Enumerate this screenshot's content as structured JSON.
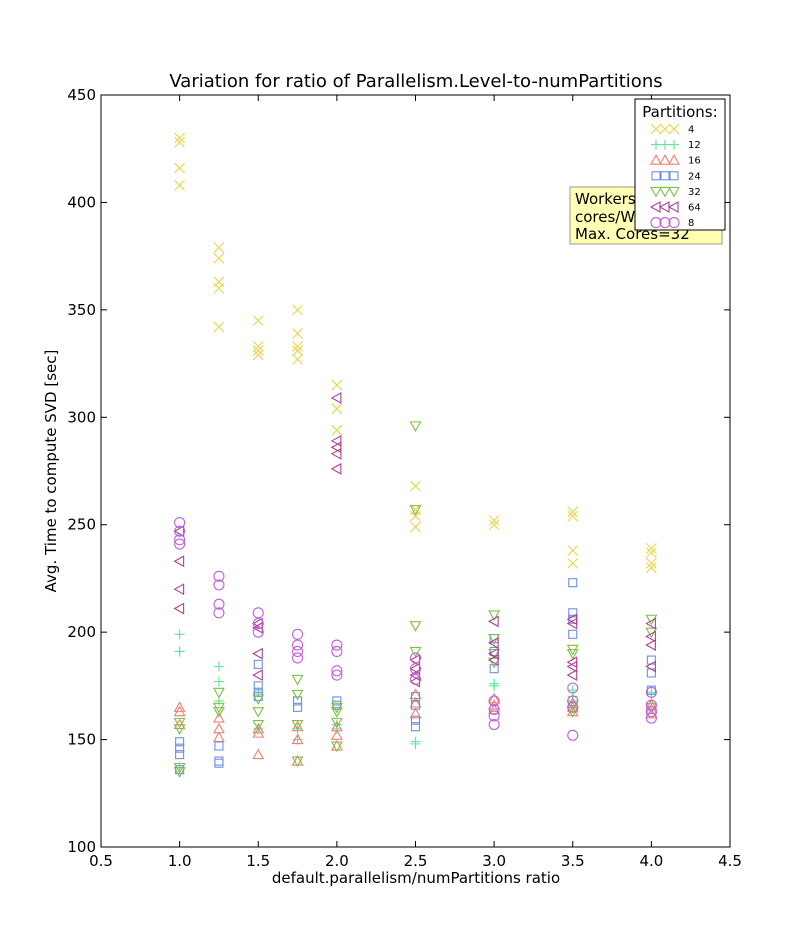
{
  "chart_data": {
    "type": "scatter",
    "title": "Variation for ratio of Parallelism.Level-to-numPartitions",
    "xlabel": "default.parallelism/numPartitions ratio",
    "ylabel": "Avg. Time to compute SVD [sec]",
    "xlim": [
      0.5,
      4.5
    ],
    "ylim": [
      100,
      450
    ],
    "xticks": [
      "0.5",
      "1.0",
      "1.5",
      "2.0",
      "2.5",
      "3.0",
      "3.5",
      "4.0",
      "4.5"
    ],
    "yticks": [
      "100",
      "150",
      "200",
      "250",
      "300",
      "350",
      "400",
      "450"
    ],
    "grid": false,
    "legend": {
      "title": "Partitions:",
      "placement": "top-right"
    },
    "annotation": {
      "lines": [
        "Workers",
        "cores/W",
        "Max. Cores=32"
      ],
      "background": "#ffffb3"
    },
    "series": [
      {
        "name": "4",
        "marker": "x",
        "color": "#e8d44d",
        "points": [
          [
            1.0,
            430
          ],
          [
            1.0,
            428
          ],
          [
            1.0,
            416
          ],
          [
            1.0,
            408
          ],
          [
            1.25,
            379
          ],
          [
            1.25,
            374
          ],
          [
            1.25,
            363
          ],
          [
            1.25,
            360
          ],
          [
            1.25,
            342
          ],
          [
            1.5,
            345
          ],
          [
            1.5,
            333
          ],
          [
            1.5,
            331
          ],
          [
            1.5,
            329
          ],
          [
            1.75,
            350
          ],
          [
            1.75,
            339
          ],
          [
            1.75,
            333
          ],
          [
            1.75,
            331
          ],
          [
            1.75,
            327
          ],
          [
            2.0,
            315
          ],
          [
            2.0,
            304
          ],
          [
            2.0,
            294
          ],
          [
            2.5,
            268
          ],
          [
            2.5,
            257
          ],
          [
            2.5,
            254
          ],
          [
            2.5,
            249
          ],
          [
            3.0,
            252
          ],
          [
            3.0,
            250
          ],
          [
            3.5,
            256
          ],
          [
            3.5,
            254
          ],
          [
            3.5,
            238
          ],
          [
            3.5,
            232
          ],
          [
            4.0,
            239
          ],
          [
            4.0,
            237
          ],
          [
            4.0,
            232
          ],
          [
            4.0,
            230
          ]
        ]
      },
      {
        "name": "12",
        "marker": "plus",
        "color": "#5ee89a",
        "points": [
          [
            1.0,
            199
          ],
          [
            1.0,
            191
          ],
          [
            1.0,
            191
          ],
          [
            1.0,
            137
          ],
          [
            1.25,
            184
          ],
          [
            1.25,
            177
          ],
          [
            1.25,
            168
          ],
          [
            1.5,
            172
          ],
          [
            1.5,
            155
          ],
          [
            1.75,
            155
          ],
          [
            1.75,
            150
          ],
          [
            2.0,
            157
          ],
          [
            2.0,
            155
          ],
          [
            2.5,
            149
          ],
          [
            2.5,
            148
          ],
          [
            3.0,
            176
          ],
          [
            3.0,
            175
          ],
          [
            3.5,
            173
          ],
          [
            3.5,
            170
          ],
          [
            4.0,
            172
          ],
          [
            4.0,
            171
          ]
        ]
      },
      {
        "name": "16",
        "marker": "triangle-up",
        "color": "#f08070",
        "points": [
          [
            1.0,
            165
          ],
          [
            1.0,
            163
          ],
          [
            1.0,
            157
          ],
          [
            1.25,
            160
          ],
          [
            1.25,
            155
          ],
          [
            1.25,
            151
          ],
          [
            1.5,
            155
          ],
          [
            1.5,
            153
          ],
          [
            1.5,
            143
          ],
          [
            1.75,
            156
          ],
          [
            1.75,
            150
          ],
          [
            1.75,
            140
          ],
          [
            2.0,
            156
          ],
          [
            2.0,
            152
          ],
          [
            2.0,
            147
          ],
          [
            2.5,
            171
          ],
          [
            2.5,
            167
          ],
          [
            2.5,
            162
          ],
          [
            3.0,
            169
          ],
          [
            3.0,
            166
          ],
          [
            3.0,
            164
          ],
          [
            3.5,
            167
          ],
          [
            3.5,
            165
          ],
          [
            3.5,
            163
          ],
          [
            4.0,
            166
          ],
          [
            4.0,
            164
          ],
          [
            4.0,
            162
          ]
        ]
      },
      {
        "name": "24",
        "marker": "square",
        "color": "#6d8fe8",
        "points": [
          [
            1.0,
            149
          ],
          [
            1.0,
            146
          ],
          [
            1.0,
            143
          ],
          [
            1.0,
            136
          ],
          [
            1.25,
            147
          ],
          [
            1.25,
            140
          ],
          [
            1.25,
            139
          ],
          [
            1.5,
            185
          ],
          [
            1.5,
            175
          ],
          [
            1.5,
            172
          ],
          [
            1.5,
            170
          ],
          [
            1.75,
            168
          ],
          [
            1.75,
            165
          ],
          [
            2.0,
            168
          ],
          [
            2.0,
            166
          ],
          [
            2.5,
            170
          ],
          [
            2.5,
            166
          ],
          [
            2.5,
            159
          ],
          [
            2.5,
            156
          ],
          [
            3.0,
            197
          ],
          [
            3.0,
            191
          ],
          [
            3.0,
            183
          ],
          [
            3.5,
            223
          ],
          [
            3.5,
            209
          ],
          [
            3.5,
            206
          ],
          [
            3.5,
            199
          ],
          [
            4.0,
            187
          ],
          [
            4.0,
            181
          ],
          [
            4.0,
            173
          ]
        ]
      },
      {
        "name": "32",
        "marker": "triangle-down",
        "color": "#7cc044",
        "points": [
          [
            1.0,
            158
          ],
          [
            1.0,
            155
          ],
          [
            1.0,
            137
          ],
          [
            1.0,
            135
          ],
          [
            1.25,
            172
          ],
          [
            1.25,
            165
          ],
          [
            1.25,
            163
          ],
          [
            1.5,
            169
          ],
          [
            1.5,
            163
          ],
          [
            1.5,
            157
          ],
          [
            1.75,
            178
          ],
          [
            1.75,
            171
          ],
          [
            1.75,
            157
          ],
          [
            1.75,
            140
          ],
          [
            2.0,
            165
          ],
          [
            2.0,
            163
          ],
          [
            2.0,
            158
          ],
          [
            2.0,
            147
          ],
          [
            2.5,
            296
          ],
          [
            2.5,
            257
          ],
          [
            2.5,
            203
          ],
          [
            2.5,
            191
          ],
          [
            3.0,
            208
          ],
          [
            3.0,
            197
          ],
          [
            3.0,
            190
          ],
          [
            3.0,
            186
          ],
          [
            3.5,
            192
          ],
          [
            3.5,
            190
          ],
          [
            3.5,
            166
          ],
          [
            3.5,
            163
          ],
          [
            4.0,
            206
          ],
          [
            4.0,
            200
          ],
          [
            4.0,
            165
          ]
        ]
      },
      {
        "name": "64",
        "marker": "triangle-left",
        "color": "#b03f8c",
        "points": [
          [
            1.0,
            247
          ],
          [
            1.0,
            233
          ],
          [
            1.0,
            220
          ],
          [
            1.0,
            211
          ],
          [
            1.5,
            204
          ],
          [
            1.5,
            202
          ],
          [
            1.5,
            190
          ],
          [
            1.5,
            180
          ],
          [
            2.0,
            309
          ],
          [
            2.0,
            289
          ],
          [
            2.0,
            286
          ],
          [
            2.0,
            283
          ],
          [
            2.0,
            276
          ],
          [
            2.5,
            187
          ],
          [
            2.5,
            183
          ],
          [
            2.5,
            180
          ],
          [
            2.5,
            177
          ],
          [
            3.0,
            205
          ],
          [
            3.0,
            195
          ],
          [
            3.0,
            190
          ],
          [
            3.0,
            187
          ],
          [
            3.5,
            206
          ],
          [
            3.5,
            204
          ],
          [
            3.5,
            186
          ],
          [
            3.5,
            184
          ],
          [
            3.5,
            180
          ],
          [
            4.0,
            204
          ],
          [
            4.0,
            198
          ],
          [
            4.0,
            194
          ],
          [
            4.0,
            184
          ]
        ]
      },
      {
        "name": "8",
        "marker": "circle",
        "color": "#c060e0",
        "points": [
          [
            1.0,
            251
          ],
          [
            1.0,
            247
          ],
          [
            1.0,
            243
          ],
          [
            1.0,
            241
          ],
          [
            1.25,
            226
          ],
          [
            1.25,
            222
          ],
          [
            1.25,
            213
          ],
          [
            1.25,
            209
          ],
          [
            1.5,
            209
          ],
          [
            1.5,
            204
          ],
          [
            1.5,
            200
          ],
          [
            1.75,
            199
          ],
          [
            1.75,
            194
          ],
          [
            1.75,
            191
          ],
          [
            1.75,
            188
          ],
          [
            2.0,
            194
          ],
          [
            2.0,
            191
          ],
          [
            2.0,
            182
          ],
          [
            2.0,
            180
          ],
          [
            2.5,
            188
          ],
          [
            2.5,
            183
          ],
          [
            2.5,
            178
          ],
          [
            3.0,
            168
          ],
          [
            3.0,
            164
          ],
          [
            3.0,
            161
          ],
          [
            3.0,
            157
          ],
          [
            3.5,
            174
          ],
          [
            3.5,
            168
          ],
          [
            3.5,
            165
          ],
          [
            3.5,
            152
          ],
          [
            4.0,
            172
          ],
          [
            4.0,
            166
          ],
          [
            4.0,
            163
          ],
          [
            4.0,
            160
          ]
        ]
      }
    ]
  }
}
